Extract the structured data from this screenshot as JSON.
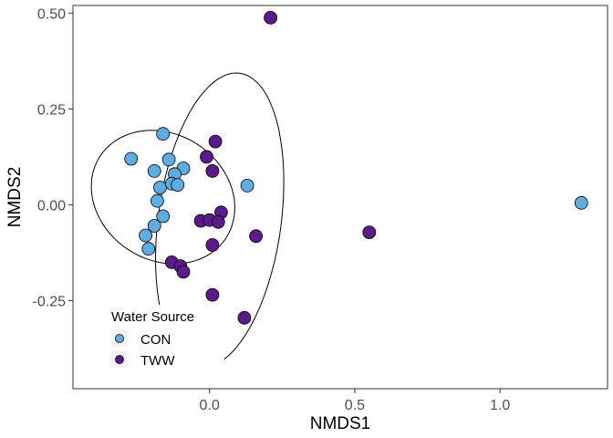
{
  "chart_data": {
    "type": "scatter",
    "xlabel": "NMDS1",
    "ylabel": "NMDS2",
    "xlim": [
      -0.47,
      1.37
    ],
    "ylim": [
      -0.48,
      0.52
    ],
    "x_ticks": [
      0.0,
      0.5,
      1.0
    ],
    "x_tick_labels": [
      "0.0",
      "0.5",
      "1.0"
    ],
    "y_ticks": [
      -0.25,
      0.0,
      0.25,
      0.5
    ],
    "y_tick_labels": [
      "-0.25",
      "0.00",
      "0.25",
      "0.50"
    ],
    "grid": false,
    "legend": {
      "title": "Water Source",
      "placement": "bottom-left inside",
      "entries": [
        {
          "label": "CON",
          "color": "#5DADE2"
        },
        {
          "label": "TWW",
          "color": "#5B1A8B"
        }
      ]
    },
    "series": [
      {
        "name": "CON",
        "color": "#5DADE2",
        "points": [
          [
            -0.27,
            0.12
          ],
          [
            -0.16,
            0.185
          ],
          [
            -0.19,
            0.088
          ],
          [
            -0.14,
            0.118
          ],
          [
            -0.09,
            0.095
          ],
          [
            -0.12,
            0.08
          ],
          [
            -0.17,
            0.045
          ],
          [
            -0.13,
            0.055
          ],
          [
            -0.11,
            0.052
          ],
          [
            -0.18,
            0.01
          ],
          [
            -0.16,
            -0.03
          ],
          [
            -0.19,
            -0.055
          ],
          [
            -0.22,
            -0.08
          ],
          [
            -0.21,
            -0.115
          ],
          [
            0.13,
            0.05
          ],
          [
            1.28,
            0.005
          ]
        ]
      },
      {
        "name": "TWW",
        "color": "#5B1A8B",
        "points": [
          [
            0.21,
            0.488
          ],
          [
            0.02,
            0.165
          ],
          [
            -0.01,
            0.125
          ],
          [
            0.01,
            0.088
          ],
          [
            0.04,
            -0.02
          ],
          [
            -0.03,
            -0.042
          ],
          [
            0.0,
            -0.04
          ],
          [
            0.03,
            -0.045
          ],
          [
            0.16,
            -0.082
          ],
          [
            0.01,
            -0.105
          ],
          [
            -0.13,
            -0.15
          ],
          [
            -0.1,
            -0.16
          ],
          [
            -0.09,
            -0.175
          ],
          [
            0.01,
            -0.235
          ],
          [
            0.12,
            -0.295
          ],
          [
            0.55,
            -0.072
          ]
        ]
      }
    ],
    "ellipses": [
      {
        "name": "CON",
        "center": [
          -0.16,
          0.02
        ],
        "semi_axes": [
          0.25,
          0.17
        ],
        "angle_deg": -12
      },
      {
        "name": "TWW",
        "center": [
          0.035,
          -0.04
        ],
        "semi_axes": [
          0.21,
          0.39
        ],
        "angle_deg": -12
      }
    ]
  }
}
